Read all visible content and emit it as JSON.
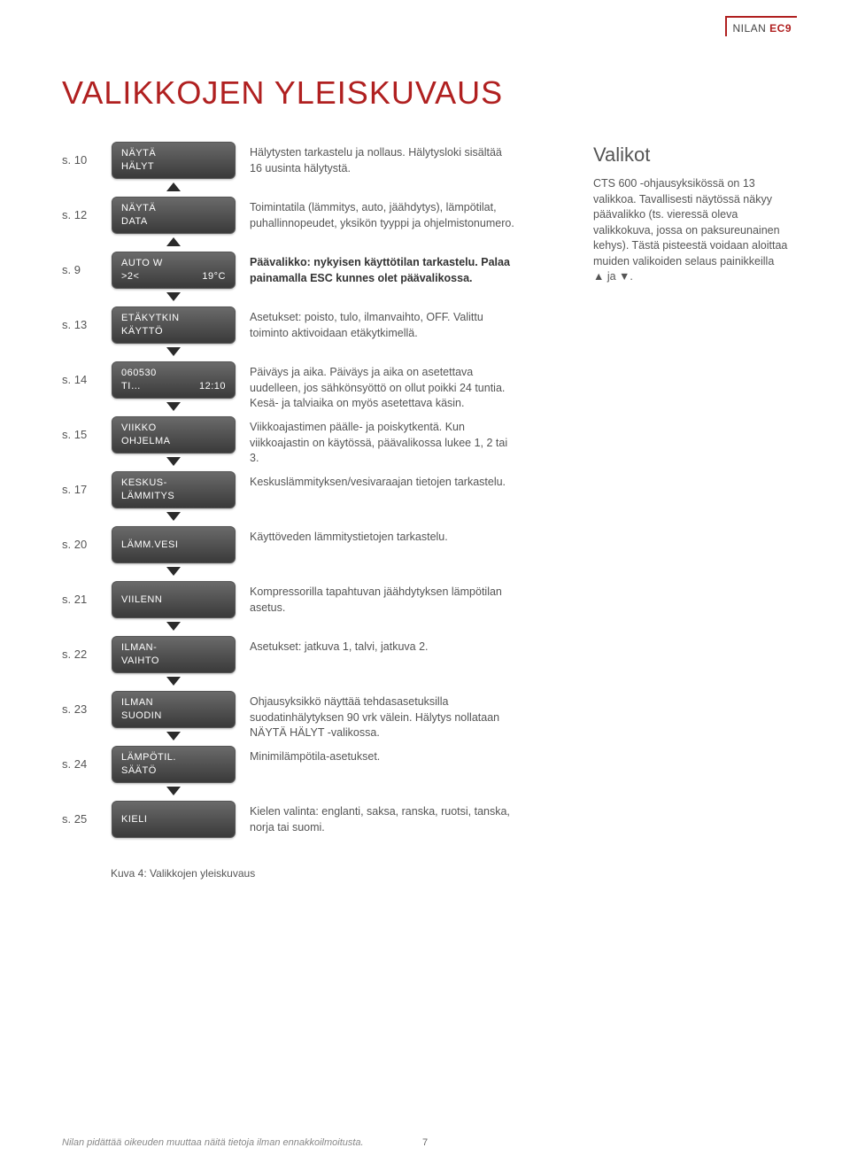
{
  "header": {
    "brand1": "NILAN",
    "brand2": "EC9"
  },
  "title": "VALIKKOJEN YLEISKUVAUS",
  "sidebar": {
    "heading": "Valikot",
    "body": "CTS 600 -ohjausyksikössä on 13 valikkoa. Tavallisesti näytössä näkyy päävalikko (ts. vieressä oleva valikkokuva, jossa on paksureunainen kehys). Tästä pisteestä voidaan aloittaa muiden valikoiden selaus painikkeilla ▲ ja ▼."
  },
  "rows": [
    {
      "page": "s. 10",
      "btn": {
        "l1": "NÄYTÄ",
        "l2l": "HÄLYT",
        "l2r": ""
      },
      "desc": "Hälytysten tarkastelu ja nollaus. Hälytysloki sisältää 16 uusinta hälytystä.",
      "arrow_up": true,
      "arrow_down": false,
      "bold": false
    },
    {
      "page": "s. 12",
      "btn": {
        "l1": "NÄYTÄ",
        "l2l": "DATA",
        "l2r": ""
      },
      "desc": "Toimintatila (lämmitys, auto, jäähdytys), lämpötilat, puhallinnopeudet, yksikön tyyppi ja ohjelmistonumero.",
      "arrow_up": true,
      "arrow_down": false,
      "bold": false
    },
    {
      "page": "s. 9",
      "btn": {
        "l1": "AUTO W",
        "l2l": ">2<",
        "l2r": "19°C"
      },
      "desc": "Päävalikko: nykyisen käyttötilan tarkastelu. Palaa painamalla ESC kunnes olet päävalikossa.",
      "arrow_up": false,
      "arrow_down": true,
      "bold": true
    },
    {
      "page": "s. 13",
      "btn": {
        "l1": "ETÄKYTKIN",
        "l2l": "KÄYTTÖ",
        "l2r": ""
      },
      "desc": "Asetukset: poisto, tulo, ilmanvaihto, OFF. Valittu toiminto aktivoidaan etäkytkimellä.",
      "arrow_up": false,
      "arrow_down": true,
      "bold": false
    },
    {
      "page": "s. 14",
      "btn": {
        "l1": "060530",
        "l2l": "TI…",
        "l2r": "12:10"
      },
      "desc": "Päiväys ja aika. Päiväys ja aika on asetettava uudelleen, jos sähkönsyöttö on ollut poikki 24 tuntia. Kesä- ja talviaika on myös asetettava käsin.",
      "arrow_up": false,
      "arrow_down": true,
      "bold": false
    },
    {
      "page": "s. 15",
      "btn": {
        "l1": "VIIKKO",
        "l2l": "OHJELMA",
        "l2r": ""
      },
      "desc": "Viikkoajastimen päälle- ja poiskytkentä. Kun viikkoajastin on käytössä, päävalikossa lukee 1, 2 tai 3.",
      "arrow_up": false,
      "arrow_down": true,
      "bold": false
    },
    {
      "page": "s. 17",
      "btn": {
        "l1": "KESKUS-",
        "l2l": "LÄMMITYS",
        "l2r": ""
      },
      "desc": "Keskuslämmityksen/vesivaraajan tietojen tarkastelu.",
      "arrow_up": false,
      "arrow_down": true,
      "bold": false
    },
    {
      "page": "s. 20",
      "btn": {
        "l1": "LÄMM.VESI",
        "l2l": "",
        "l2r": ""
      },
      "desc": "Käyttöveden lämmitystietojen tarkastelu.",
      "arrow_up": false,
      "arrow_down": true,
      "bold": false
    },
    {
      "page": "s. 21",
      "btn": {
        "l1": "VIILENN",
        "l2l": "",
        "l2r": ""
      },
      "desc": "Kompressorilla tapahtuvan jäähdytyksen lämpötilan asetus.",
      "arrow_up": false,
      "arrow_down": true,
      "bold": false
    },
    {
      "page": "s. 22",
      "btn": {
        "l1": "ILMAN-",
        "l2l": "VAIHTO",
        "l2r": ""
      },
      "desc": "Asetukset: jatkuva 1, talvi, jatkuva 2.",
      "arrow_up": false,
      "arrow_down": true,
      "bold": false
    },
    {
      "page": "s. 23",
      "btn": {
        "l1": "ILMAN",
        "l2l": "SUODIN",
        "l2r": ""
      },
      "desc": "Ohjausyksikkö näyttää tehdasasetuksilla suodatinhälytyksen 90 vrk välein. Hälytys nollataan NÄYTÄ HÄLYT -valikossa.",
      "arrow_up": false,
      "arrow_down": true,
      "bold": false
    },
    {
      "page": "s. 24",
      "btn": {
        "l1": "LÄMPÖTIL.",
        "l2l": "SÄÄTÖ",
        "l2r": ""
      },
      "desc": "Minimilämpötila-asetukset.",
      "arrow_up": false,
      "arrow_down": true,
      "bold": false
    },
    {
      "page": "s. 25",
      "btn": {
        "l1": "KIELI",
        "l2l": "",
        "l2r": ""
      },
      "desc": "Kielen valinta: englanti, saksa, ranska, ruotsi, tanska, norja tai suomi.",
      "arrow_up": false,
      "arrow_down": false,
      "bold": false
    }
  ],
  "caption": "Kuva 4: Valikkojen yleiskuvaus",
  "footer": {
    "disclaimer": "Nilan pidättää oikeuden muuttaa näitä tietoja ilman ennakkoilmoitusta.",
    "pagenum": "7"
  }
}
